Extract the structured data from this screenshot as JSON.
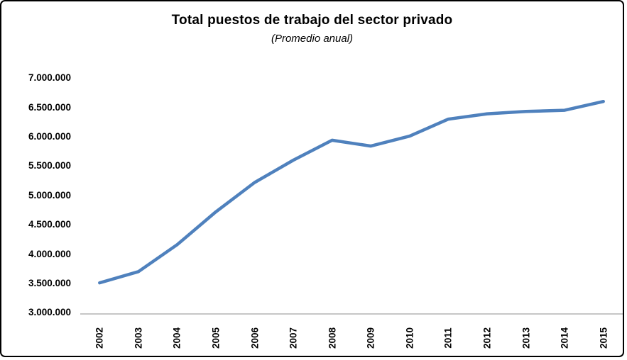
{
  "chart": {
    "title": "Total puestos de trabajo del sector privado",
    "subtitle": "(Promedio anual)"
  },
  "chart_data": {
    "type": "line",
    "title": "Total puestos de trabajo del sector privado",
    "subtitle": "(Promedio anual)",
    "xlabel": "",
    "ylabel": "",
    "categories": [
      "2002",
      "2003",
      "2004",
      "2005",
      "2006",
      "2007",
      "2008",
      "2009",
      "2010",
      "2011",
      "2012",
      "2013",
      "2014",
      "2015"
    ],
    "series": [
      {
        "name": "Total puestos de trabajo del sector privado",
        "values": [
          3510000,
          3700000,
          4160000,
          4720000,
          5220000,
          5600000,
          5940000,
          5840000,
          6010000,
          6300000,
          6390000,
          6430000,
          6450000,
          6600000
        ]
      }
    ],
    "ylim": [
      3000000,
      7000000
    ],
    "y_tick_step": 500000,
    "y_tick_labels": [
      "7.000.000",
      "6.500.000",
      "6.000.000",
      "5.500.000",
      "5.000.000",
      "4.500.000",
      "4.000.000",
      "3.500.000",
      "3.000.000"
    ],
    "grid": false,
    "legend": false,
    "line_color": "#4F81BD",
    "axis_color": "#C6C6C6",
    "text_color": "#000000"
  }
}
